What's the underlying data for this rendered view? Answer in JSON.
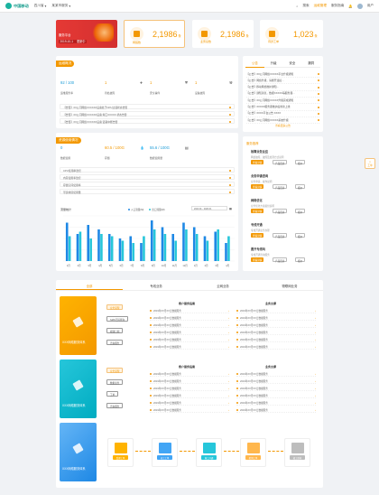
{
  "header": {
    "logo": "中国移动",
    "region": "四川省",
    "unit": "某某市服务",
    "search": "搜索",
    "items": [
      "运维管理",
      "服务指南"
    ],
    "highlight": "运维管理",
    "user": "用户"
  },
  "banner": {
    "line1": "服务平台",
    "line2": "2019-10-1",
    "badge": "更新中"
  },
  "stats": [
    {
      "label": "网络数",
      "value": "2,1986",
      "unit": "条"
    },
    {
      "label": "业务总数",
      "value": "2,1986",
      "unit": "条"
    },
    {
      "label": "待办工单",
      "value": "1,023",
      "unit": "条"
    }
  ],
  "network": {
    "title": "运维概况",
    "k1": {
      "value": "92 / 100",
      "label": "运维服务率"
    },
    "k2": {
      "value": "1",
      "label": "待处故障"
    },
    "k3": {
      "value": "1",
      "label": "安全事件"
    },
    "k4": {
      "value": "1",
      "label": "设备故障"
    },
    "rows": [
      "【告警】XX公司网络XXXXXX设备处于CPU过载状态告警",
      "【告警】XX公司网络XXXXXX设备 端口XXXXX 状态告警",
      "【告警】XX公司网络XXXXXX设备 链路中断告警"
    ]
  },
  "resource": {
    "title": "资源使用情况",
    "k1": {
      "value": "0",
      "label": "数据使用"
    },
    "k2": {
      "value": "60.5 / 100G",
      "label": "存储"
    },
    "k3": {
      "value": "55.6 / 100G",
      "label": "数据使用量"
    },
    "rows": [
      "CPU使用率监控",
      "内存使用率监控",
      "存储空间使用率",
      "带宽峰值使用量"
    ]
  },
  "chart_data": {
    "type": "bar",
    "title": "流量统计",
    "legend": [
      "入口流量(M)",
      "出口流量(M)"
    ],
    "range": "2020.01 - 2020.01",
    "categories": [
      "1月",
      "2月",
      "3月",
      "4月",
      "5月",
      "6月",
      "7月",
      "8月",
      "9月",
      "10月",
      "11月",
      "12月",
      "1月",
      "2月",
      "3月",
      "4月"
    ],
    "series": [
      {
        "name": "入口流量(M)",
        "values": [
          85,
          60,
          80,
          70,
          60,
          50,
          55,
          40,
          90,
          75,
          60,
          85,
          75,
          55,
          65,
          40
        ]
      },
      {
        "name": "出口流量(M)",
        "values": [
          55,
          65,
          50,
          60,
          55,
          45,
          40,
          55,
          70,
          60,
          45,
          70,
          60,
          45,
          70,
          55
        ]
      }
    ],
    "ylim": [
      0,
      100
    ]
  },
  "notice": {
    "tabs": [
      "公告",
      "升级",
      "安全",
      "漏洞"
    ],
    "items": [
      "【公告】XX公司网络XXXXX平台升级通知",
      "【公告】网络升级，请断开连接...",
      "【公告】移动网络维护通知...",
      "【公告】通知消息，数据XXXXX等服务器...",
      "【公告】XX公司网络XXXXX升级完成通知",
      "【公告】XXXXX服务器维护后重新上线",
      "【公告】XXXX平台公告 XXXX",
      "【公告】XX公司网络XXXXX系统升级"
    ],
    "more": "查看更多公告"
  },
  "service": {
    "title": "服务推荐",
    "items": [
      {
        "t": "故障业务反应",
        "d": "网络故障，故障及处理方式说明"
      },
      {
        "t": "业务申请咨询",
        "d": "业务申请，操作说明"
      },
      {
        "t": "网络优化",
        "d": "业务优化方案提供说明"
      },
      {
        "t": "专线开通",
        "d": "专线开通业务办理"
      },
      {
        "t": "要开专线吗",
        "d": "专线开通咨询服务"
      }
    ],
    "b1": "查看详情",
    "b2": "产品目录",
    "b3": "报价"
  },
  "bottom": {
    "tabs": [
      "全部",
      "专线业务",
      "云网业务",
      "物联网业务"
    ],
    "p1": {
      "label": "XXX网络服务体系",
      "btns": [
        "业务受理",
        "SMS号码查询",
        "视频订阅",
        "咨询服务"
      ]
    },
    "p2": {
      "label": "XXX网络服务体系",
      "btns": [
        "业务受理",
        "数据业务",
        "工单",
        "咨询服务"
      ]
    },
    "p3": {
      "label": "XXX网络服务体系"
    },
    "col1": "客户服务指南",
    "col2": "业务支撑",
    "list": [
      "2019年XX月XX日数据服务",
      "2019年XX月XX日数据服务",
      "2019年XX月XX日数据服务",
      "2019年XX月XX日数据服务",
      "2019年XX月XX日数据服务",
      "2019年XX月XX日数据服务"
    ],
    "flow": [
      "受理工单",
      "派工工单",
      "施工开通",
      "检测工单",
      "竣工验收"
    ]
  },
  "side": "工单"
}
